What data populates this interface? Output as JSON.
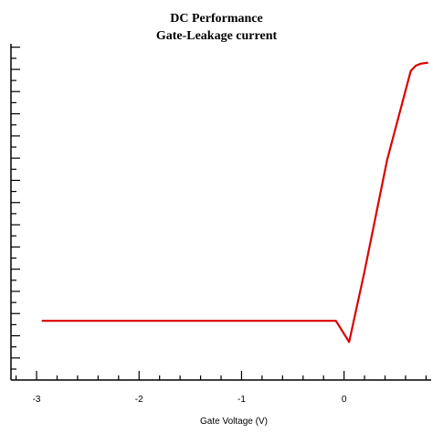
{
  "chart_data": {
    "type": "line",
    "title": "DC Performance",
    "subtitle": "Gate-Leakage current",
    "xlabel": "Gate Voltage (V)",
    "ylabel": "",
    "xlim": [
      -3.25,
      0.85
    ],
    "ylim": [
      0,
      1
    ],
    "x_ticks": [
      -3,
      -2,
      -1,
      0
    ],
    "x_tick_labels": [
      "-3",
      "-2",
      "-1",
      "0"
    ],
    "y_tick_labels_shown": false,
    "grid": false,
    "series": [
      {
        "color": "#dd0000",
        "x": [
          -2.95,
          -0.08,
          0.05,
          0.2,
          0.42,
          0.65,
          0.7,
          0.75,
          0.82
        ],
        "y": [
          0.176,
          0.176,
          0.113,
          0.324,
          0.655,
          0.919,
          0.935,
          0.941,
          0.944
        ]
      }
    ]
  }
}
